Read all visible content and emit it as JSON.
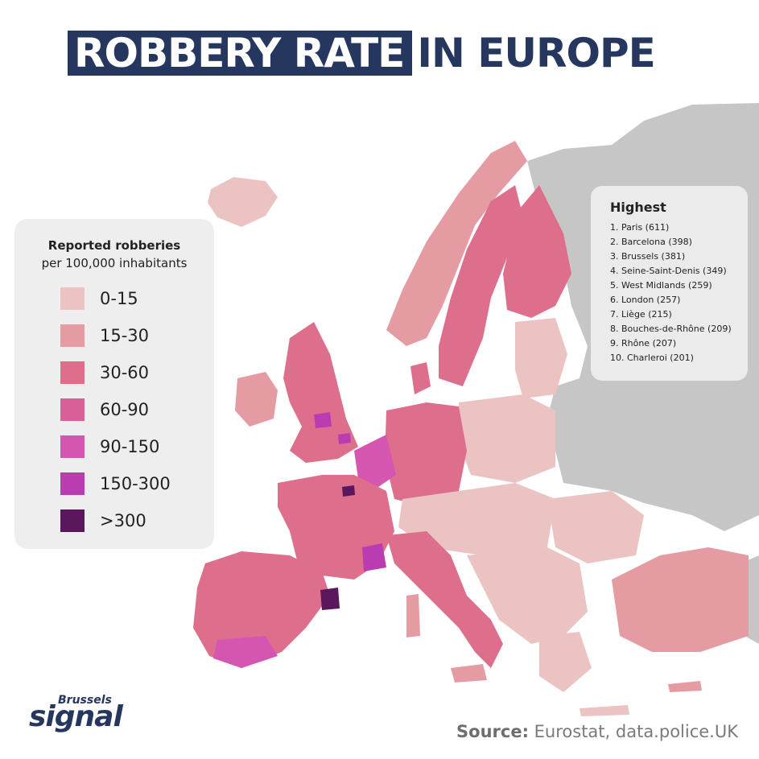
{
  "title": {
    "highlight": "ROBBERY RATE",
    "rest": "IN EUROPE"
  },
  "legend": {
    "title": "Reported robberies",
    "subtitle": "per 100,000 inhabitants",
    "classes": [
      {
        "label": "0-15",
        "color": "#ecc3c3"
      },
      {
        "label": "15-30",
        "color": "#e59ba2"
      },
      {
        "label": "30-60",
        "color": "#dd6f8c"
      },
      {
        "label": "60-90",
        "color": "#d85f98"
      },
      {
        "label": "90-150",
        "color": "#d556b1"
      },
      {
        "label": "150-300",
        "color": "#b93cb0"
      },
      {
        "label": ">300",
        "color": "#5a175d"
      }
    ]
  },
  "highest": {
    "title": "Highest",
    "items": [
      "1. Paris (611)",
      "2. Barcelona (398)",
      "3. Brussels (381)",
      "4. Seine-Saint-Denis (349)",
      "5. West Midlands (259)",
      "6. London (257)",
      "7. Liège (215)",
      "8. Bouches-de-Rhône (209)",
      "9. Rhône (207)",
      "10. Charleroi (201)"
    ]
  },
  "source": {
    "label": "Source:",
    "text": "Eurostat, data.police.UK"
  },
  "logo": {
    "top": "Brussels",
    "bottom": "signal"
  },
  "map_colors": {
    "no_data": "#c6c6c6",
    "sea": "#ffffff",
    "border": "#ffffff"
  }
}
